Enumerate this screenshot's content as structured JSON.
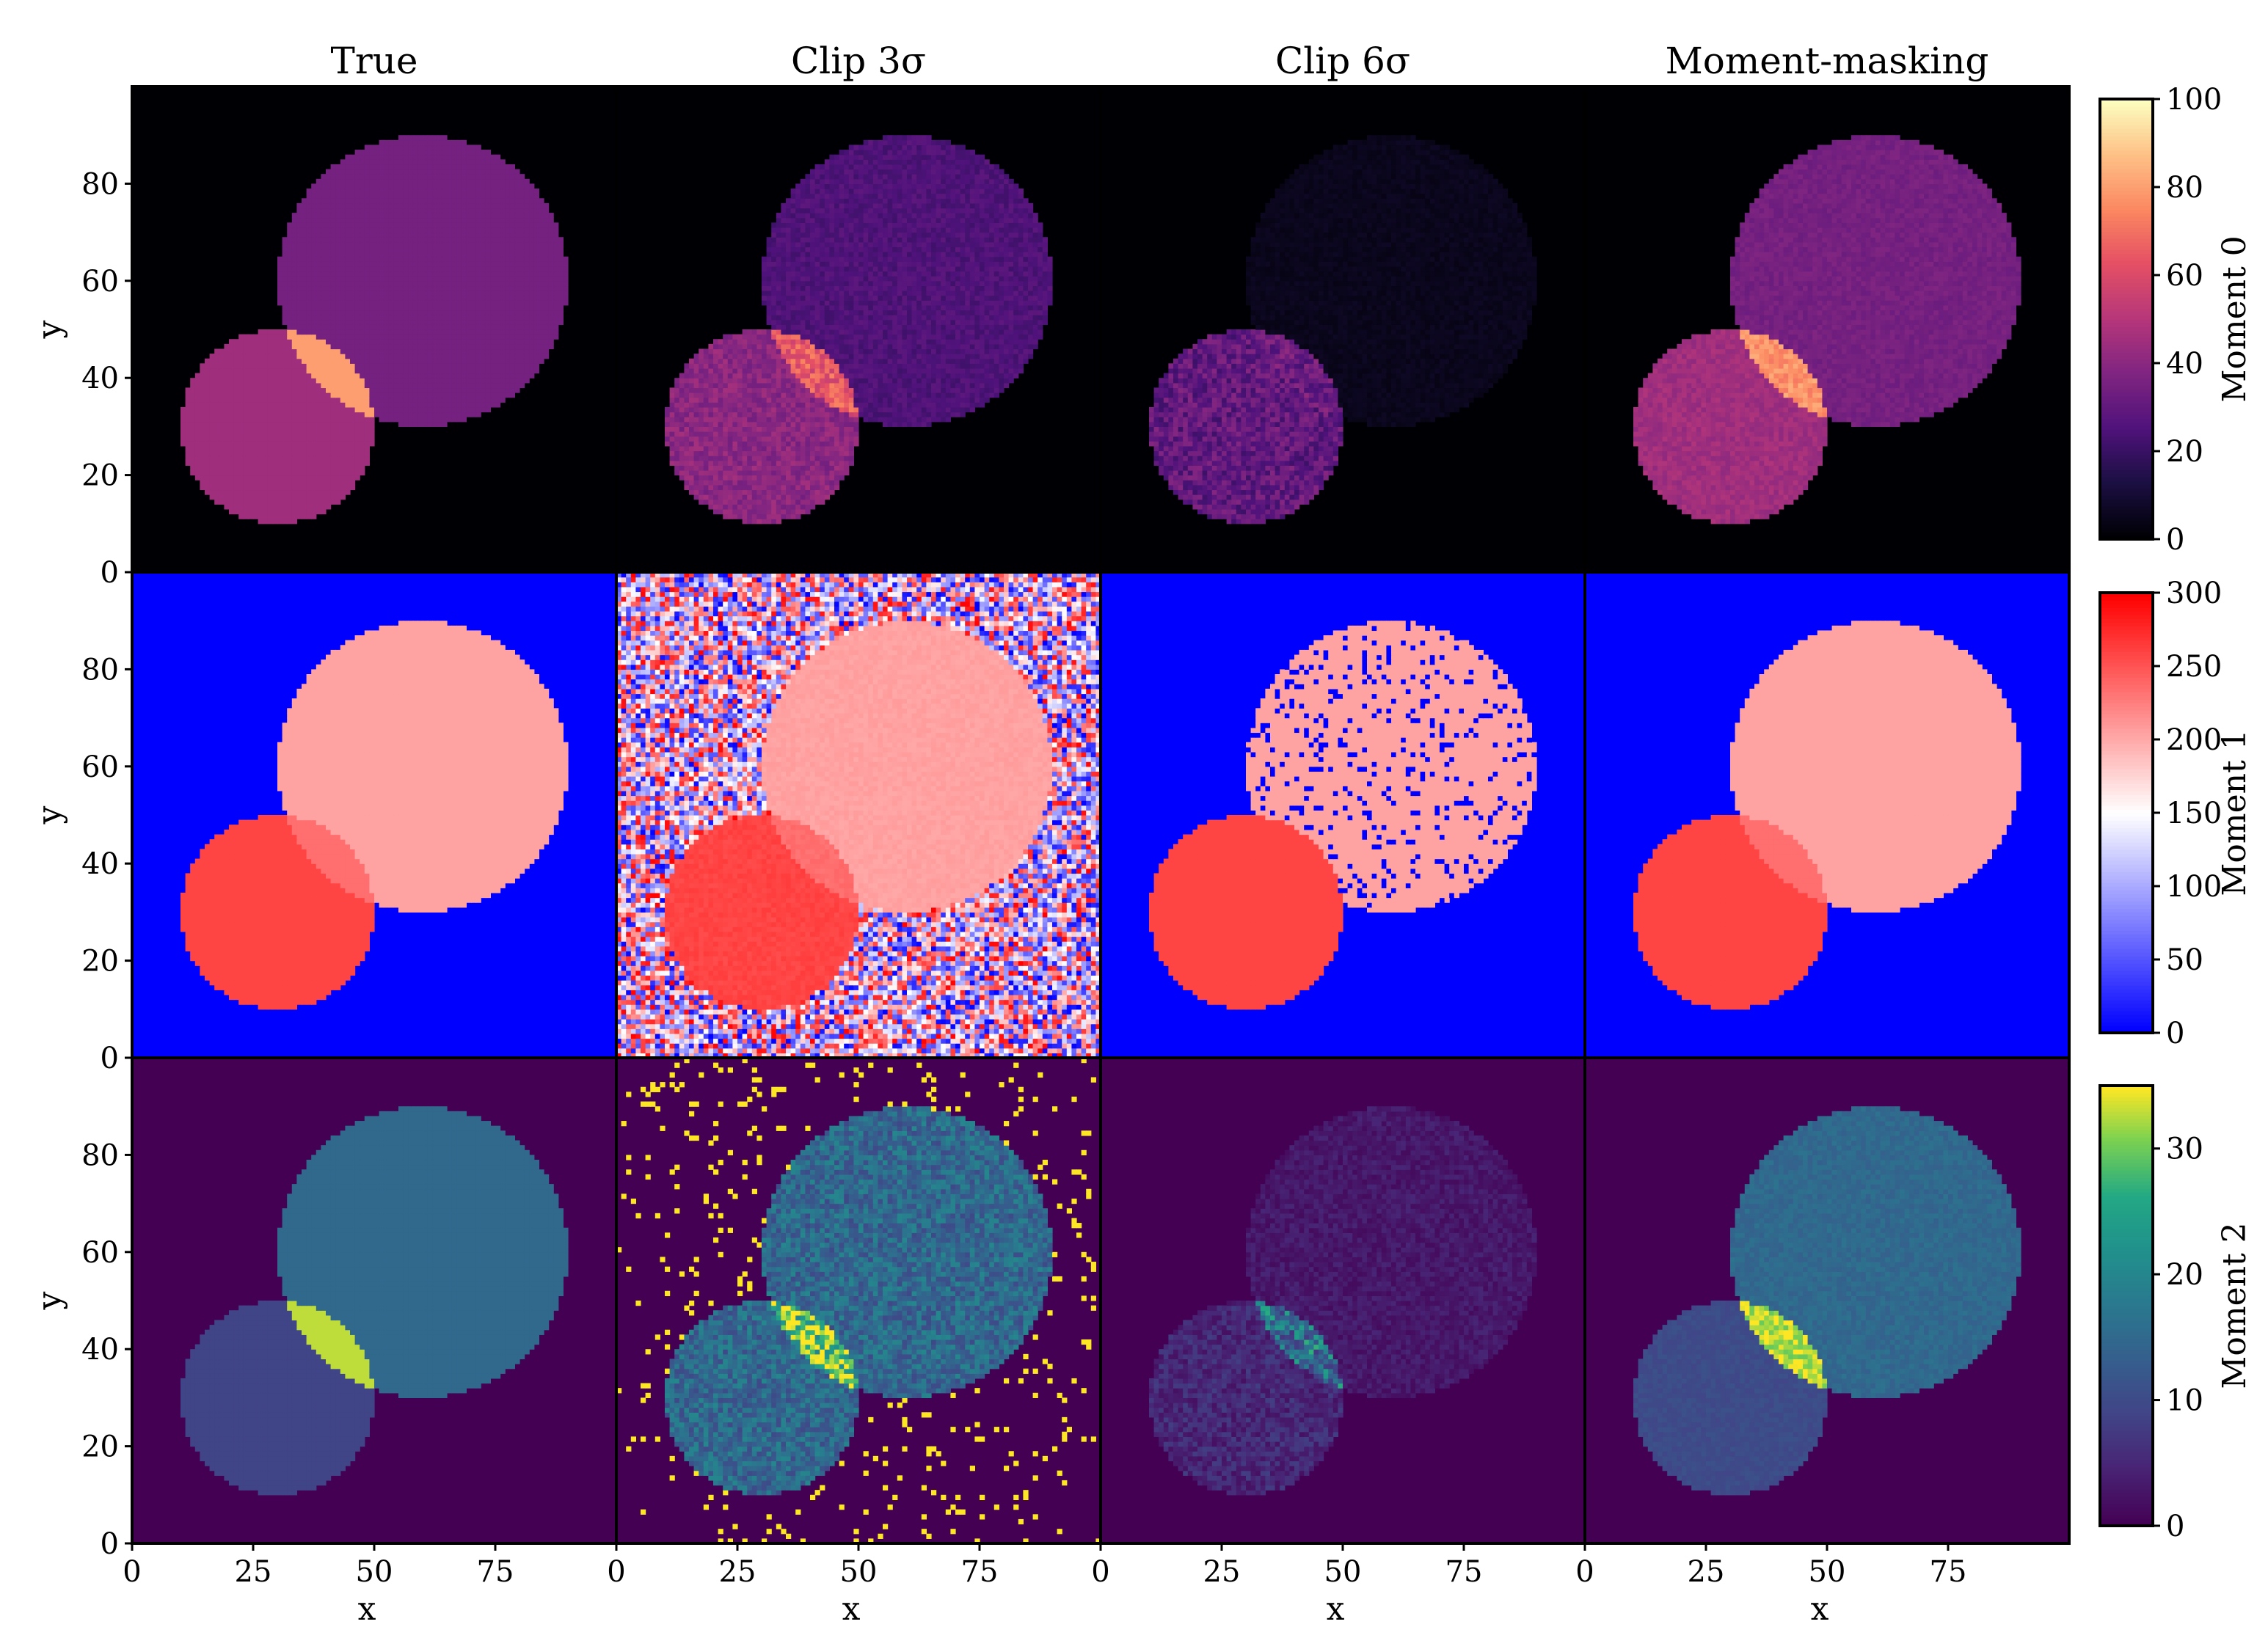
{
  "chart_data": {
    "type": "heatmap",
    "columns": [
      "True",
      "Clip 3σ",
      "Clip 6σ",
      "Moment-masking"
    ],
    "rows": [
      {
        "name": "Moment 0",
        "colormap": "magma",
        "colorbar_ticks": [
          "0",
          "20",
          "40",
          "60",
          "80",
          "100"
        ],
        "range": [
          0,
          100
        ]
      },
      {
        "name": "Moment 1",
        "colormap": "bwr",
        "colorbar_ticks": [
          "0",
          "50",
          "100",
          "150",
          "200",
          "250",
          "300"
        ],
        "range": [
          0,
          300
        ]
      },
      {
        "name": "Moment 2",
        "colormap": "viridis",
        "colorbar_ticks": [
          "0",
          "10",
          "20",
          "30"
        ],
        "range": [
          0,
          35
        ]
      }
    ],
    "xlabel": "x",
    "ylabel": "y",
    "x_ticks": [
      "0",
      "25",
      "50",
      "75"
    ],
    "y_ticks": [
      "0",
      "20",
      "40",
      "60",
      "80"
    ],
    "xlim": [
      0,
      100
    ],
    "ylim": [
      0,
      100
    ],
    "shapes": {
      "small_circle": {
        "center": [
          30,
          30
        ],
        "radius": 20
      },
      "large_circle": {
        "center": [
          60,
          60
        ],
        "radius": 30
      }
    },
    "panels": [
      {
        "row": 0,
        "col": 0,
        "bg": 0,
        "small": 45,
        "large": 35,
        "overlap": 80,
        "noise": 0
      },
      {
        "row": 0,
        "col": 1,
        "bg": 0,
        "small": 40,
        "large": 25,
        "overlap": 65,
        "noise": 0.15
      },
      {
        "row": 0,
        "col": 2,
        "bg": 0,
        "small": 30,
        "large": 5,
        "overlap": 32,
        "noise": 0.3
      },
      {
        "row": 0,
        "col": 3,
        "bg": 0,
        "small": 45,
        "large": 35,
        "overlap": 78,
        "noise": 0.08
      },
      {
        "row": 1,
        "col": 0,
        "bg": 0,
        "small": 260,
        "large": 205,
        "overlap": 235,
        "noise": 0
      },
      {
        "row": 1,
        "col": 1,
        "bg": 0,
        "small": 260,
        "large": 205,
        "overlap": 235,
        "noise": 0.02,
        "bg_random": true
      },
      {
        "row": 1,
        "col": 2,
        "bg": 0,
        "small": 260,
        "large": 205,
        "overlap": 260,
        "noise": 0,
        "large_dropout": 0.12
      },
      {
        "row": 1,
        "col": 3,
        "bg": 0,
        "small": 260,
        "large": 205,
        "overlap": 235,
        "noise": 0
      },
      {
        "row": 2,
        "col": 0,
        "bg": 0,
        "small": 9,
        "large": 15,
        "overlap": 33,
        "noise": 0
      },
      {
        "row": 2,
        "col": 1,
        "bg": 0,
        "small": 15,
        "large": 15,
        "overlap": 30,
        "noise": 0.35,
        "bg_spikes": 0.05
      },
      {
        "row": 2,
        "col": 2,
        "bg": 0,
        "small": 5,
        "large": 3,
        "overlap": 17,
        "noise": 0.6
      },
      {
        "row": 2,
        "col": 3,
        "bg": 0,
        "small": 10,
        "large": 15,
        "overlap": 33,
        "noise": 0.1
      }
    ]
  }
}
